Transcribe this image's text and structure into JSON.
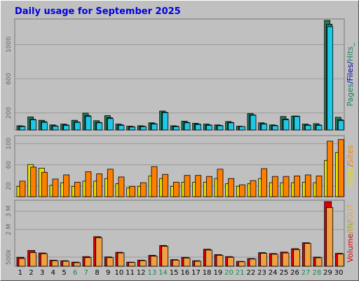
{
  "title": "Daily usage for September 2025",
  "colors": {
    "pages": "#1c7f5f",
    "files": "#1fc8e8",
    "hits": "#1c7f5f",
    "visits": "#e8e000",
    "sites": "#ff8000",
    "kbytes_in": "#aaaa00",
    "kbytes_out": "#f0a040",
    "volume": "#dd0000",
    "weekend_label": "#1a8a4a",
    "weekday_label": "#000000"
  },
  "chart_data": [
    {
      "type": "bar",
      "panel": "top",
      "categories": [
        "1",
        "2",
        "3",
        "4",
        "5",
        "6",
        "7",
        "8",
        "9",
        "10",
        "11",
        "12",
        "13",
        "14",
        "15",
        "16",
        "17",
        "18",
        "19",
        "20",
        "21",
        "22",
        "23",
        "24",
        "25",
        "26",
        "27",
        "28",
        "29",
        "30"
      ],
      "yticks": [
        "200",
        "600",
        "1000"
      ],
      "ylim": [
        0,
        1300
      ],
      "legend": [
        "Pages",
        "/",
        "Files",
        "/",
        "Hits",
        "_"
      ],
      "series": [
        {
          "name": "Hits",
          "values": [
            50,
            155,
            115,
            60,
            70,
            115,
            200,
            110,
            170,
            70,
            45,
            50,
            85,
            225,
            50,
            105,
            80,
            70,
            60,
            100,
            45,
            195,
            85,
            60,
            160,
            165,
            70,
            75,
            1300,
            150
          ]
        },
        {
          "name": "Files",
          "values": [
            40,
            120,
            90,
            45,
            55,
            90,
            160,
            85,
            135,
            55,
            35,
            40,
            70,
            205,
            40,
            85,
            65,
            55,
            50,
            85,
            40,
            175,
            70,
            50,
            120,
            160,
            55,
            55,
            1225,
            110
          ]
        },
        {
          "name": "Pages",
          "values": [
            45,
            125,
            100,
            50,
            60,
            95,
            170,
            90,
            145,
            60,
            40,
            45,
            75,
            210,
            45,
            90,
            70,
            60,
            55,
            90,
            40,
            180,
            75,
            55,
            130,
            165,
            60,
            60,
            1255,
            120
          ]
        }
      ]
    },
    {
      "type": "bar",
      "panel": "middle",
      "categories": [
        "1",
        "2",
        "3",
        "4",
        "5",
        "6",
        "7",
        "8",
        "9",
        "10",
        "11",
        "12",
        "13",
        "14",
        "15",
        "16",
        "17",
        "18",
        "19",
        "20",
        "21",
        "22",
        "23",
        "24",
        "25",
        "26",
        "27",
        "28",
        "29",
        "30"
      ],
      "yticks": [
        "20",
        "60",
        "100"
      ],
      "ylim": [
        0,
        115
      ],
      "legend": [
        "Visits",
        "/",
        "Sites"
      ],
      "series": [
        {
          "name": "Visits",
          "values": [
            20,
            62,
            55,
            22,
            27,
            20,
            30,
            30,
            35,
            25,
            17,
            20,
            40,
            35,
            20,
            28,
            28,
            28,
            35,
            25,
            20,
            25,
            35,
            27,
            27,
            27,
            28,
            27,
            70,
            85
          ]
        },
        {
          "name": "Sites",
          "values": [
            30,
            57,
            47,
            34,
            42,
            28,
            48,
            44,
            53,
            38,
            20,
            27,
            58,
            43,
            28,
            41,
            41,
            39,
            53,
            35,
            23,
            31,
            54,
            39,
            39,
            40,
            42,
            40,
            107,
            110
          ]
        }
      ]
    },
    {
      "type": "bar",
      "panel": "bottom",
      "categories": [
        "1",
        "2",
        "3",
        "4",
        "5",
        "6",
        "7",
        "8",
        "9",
        "10",
        "11",
        "12",
        "13",
        "14",
        "15",
        "16",
        "17",
        "18",
        "19",
        "20",
        "21",
        "22",
        "23",
        "24",
        "25",
        "26",
        "27",
        "28",
        "29",
        "30"
      ],
      "yticks": [
        "500k",
        "2 M",
        "3 M"
      ],
      "ylim": [
        0,
        3600000
      ],
      "legend": [
        "Volume",
        "/",
        "IN",
        "/",
        "OUT"
      ],
      "weekend_days": [
        6,
        7,
        13,
        14,
        20,
        21,
        27,
        28
      ],
      "series": [
        {
          "name": "Volume",
          "values": [
            500000,
            880000,
            740000,
            340000,
            310000,
            230000,
            540000,
            1650000,
            520000,
            780000,
            230000,
            340000,
            610000,
            1160000,
            370000,
            500000,
            310000,
            950000,
            650000,
            540000,
            270000,
            430000,
            760000,
            710000,
            790000,
            980000,
            1310000,
            510000,
            3600000,
            720000
          ]
        },
        {
          "name": "OUT",
          "values": [
            430000,
            760000,
            700000,
            310000,
            280000,
            200000,
            480000,
            1590000,
            480000,
            740000,
            210000,
            310000,
            560000,
            1110000,
            340000,
            460000,
            280000,
            900000,
            610000,
            500000,
            250000,
            400000,
            720000,
            670000,
            740000,
            930000,
            1270000,
            470000,
            3270000,
            680000
          ]
        }
      ]
    }
  ]
}
